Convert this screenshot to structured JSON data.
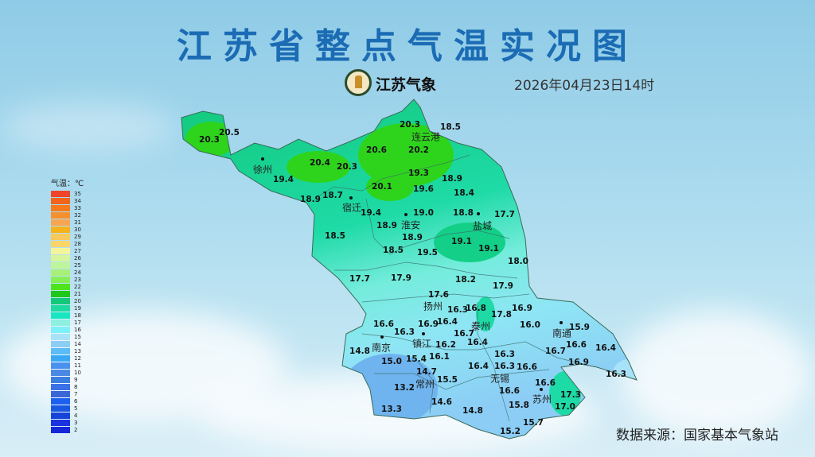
{
  "header": {
    "title": "江苏省整点气温实况图",
    "brand": "江苏气象",
    "datetime": "2026年04月23日14时"
  },
  "footer": {
    "source": "数据来源：国家基本气象站"
  },
  "legend": {
    "title": "气温：℃",
    "items": [
      {
        "v": "35",
        "c": "#f0452a"
      },
      {
        "v": "34",
        "c": "#f2641c"
      },
      {
        "v": "33",
        "c": "#f67a1c"
      },
      {
        "v": "32",
        "c": "#f5902e"
      },
      {
        "v": "31",
        "c": "#f6a552"
      },
      {
        "v": "30",
        "c": "#f5b21a"
      },
      {
        "v": "29",
        "c": "#f7c85a"
      },
      {
        "v": "28",
        "c": "#fad66a"
      },
      {
        "v": "27",
        "c": "#f4f59a"
      },
      {
        "v": "26",
        "c": "#d6f59c"
      },
      {
        "v": "25",
        "c": "#bdf59a"
      },
      {
        "v": "24",
        "c": "#a8f078"
      },
      {
        "v": "23",
        "c": "#88ee58"
      },
      {
        "v": "22",
        "c": "#4ee31a"
      },
      {
        "v": "21",
        "c": "#1ec81a"
      },
      {
        "v": "20",
        "c": "#12c87a"
      },
      {
        "v": "19",
        "c": "#1ed9a0"
      },
      {
        "v": "18",
        "c": "#18e6c0"
      },
      {
        "v": "17",
        "c": "#8ef0e0"
      },
      {
        "v": "16",
        "c": "#7ef0f8"
      },
      {
        "v": "15",
        "c": "#a8e2f8"
      },
      {
        "v": "14",
        "c": "#8ccdf5"
      },
      {
        "v": "13",
        "c": "#5cbcf5"
      },
      {
        "v": "12",
        "c": "#3aa8f5"
      },
      {
        "v": "11",
        "c": "#4a90ee"
      },
      {
        "v": "10",
        "c": "#4a88e6"
      },
      {
        "v": "9",
        "c": "#3a7ee0"
      },
      {
        "v": "8",
        "c": "#3a70e8"
      },
      {
        "v": "7",
        "c": "#3a66d8"
      },
      {
        "v": "6",
        "c": "#1c60f0"
      },
      {
        "v": "5",
        "c": "#1858e0"
      },
      {
        "v": "4",
        "c": "#1444d8"
      },
      {
        "v": "3",
        "c": "#1a32e0"
      },
      {
        "v": "2",
        "c": "#1428d8"
      }
    ]
  },
  "cities": [
    "徐州",
    "连云港",
    "宿迁",
    "淮安",
    "盐城",
    "扬州",
    "泰州",
    "南京",
    "镇江",
    "南通",
    "无锡",
    "常州",
    "苏州"
  ],
  "stations": [
    "20.3",
    "20.5",
    "19.4",
    "20.4",
    "20.3",
    "20.6",
    "20.3",
    "18.5",
    "20.2",
    "20.1",
    "19.3",
    "19.6",
    "18.9",
    "18.4",
    "18.9",
    "18.7",
    "19.4",
    "19.0",
    "18.8",
    "17.7",
    "18.9",
    "18.5",
    "18.9",
    "19.1",
    "19.1",
    "18.5",
    "19.5",
    "18.0",
    "17.7",
    "17.9",
    "18.2",
    "17.9",
    "17.6",
    "16.8",
    "17.8",
    "16.9",
    "16.6",
    "16.3",
    "16.9",
    "16.4",
    "16.3",
    "16.7",
    "16.0",
    "15.9",
    "14.8",
    "16.2",
    "16.4",
    "16.7",
    "16.6",
    "16.4",
    "15.0",
    "15.4",
    "16.1",
    "16.3",
    "16.3",
    "16.4",
    "16.6",
    "16.9",
    "14.7",
    "15.5",
    "16.6",
    "16.6",
    "16.3",
    "13.2",
    "17.3",
    "15.8",
    "17.0",
    "14.6",
    "14.8",
    "13.3",
    "15.7",
    "15.2"
  ]
}
